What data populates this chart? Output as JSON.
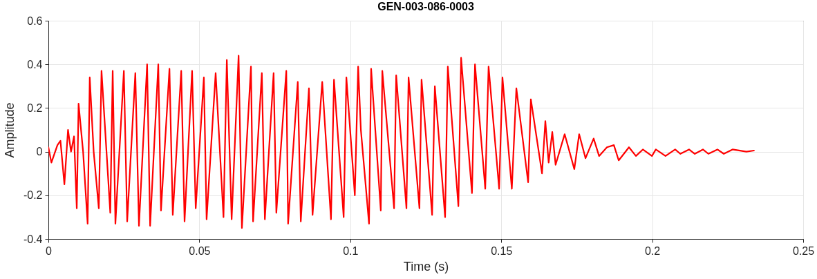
{
  "chart_data": {
    "type": "line",
    "title": "GEN-003-086-0003",
    "xlabel": "Time (s)",
    "ylabel": "Amplitude",
    "xlim": [
      0,
      0.25
    ],
    "xticks": [
      0,
      0.05,
      0.1,
      0.15,
      0.2,
      0.25
    ],
    "ylim": [
      -0.4,
      0.6
    ],
    "yticks": [
      -0.4,
      -0.2,
      0,
      0.2,
      0.4,
      0.6
    ],
    "grid": true,
    "series": [
      {
        "color": "#ff0000",
        "x": [
          0,
          0.001,
          0.003,
          0.004,
          0.0053,
          0.0065,
          0.0075,
          0.0085,
          0.0094,
          0.01,
          0.0115,
          0.013,
          0.0137,
          0.015,
          0.0167,
          0.0176,
          0.0205,
          0.0213,
          0.0222,
          0.025,
          0.0261,
          0.0288,
          0.03,
          0.0327,
          0.0337,
          0.0364,
          0.0373,
          0.0401,
          0.0412,
          0.044,
          0.0451,
          0.0476,
          0.0488,
          0.0515,
          0.0524,
          0.0554,
          0.058,
          0.0591,
          0.0607,
          0.063,
          0.0641,
          0.0671,
          0.0678,
          0.0707,
          0.0717,
          0.0746,
          0.0755,
          0.0788,
          0.0794,
          0.0826,
          0.0836,
          0.0863,
          0.0875,
          0.0907,
          0.0936,
          0.0946,
          0.0978,
          0.0987,
          0.1015,
          0.1026,
          0.1035,
          0.1062,
          0.1069,
          0.1101,
          0.1106,
          0.1145,
          0.1152,
          0.1186,
          0.1193,
          0.1229,
          0.1236,
          0.1271,
          0.128,
          0.1314,
          0.1323,
          0.1358,
          0.1367,
          0.1403,
          0.1413,
          0.1447,
          0.1458,
          0.1493,
          0.1504,
          0.1535,
          0.155,
          0.1589,
          0.1598,
          0.1635,
          0.1646,
          0.1657,
          0.1669,
          0.168,
          0.171,
          0.1742,
          0.1758,
          0.1779,
          0.1806,
          0.1824,
          0.185,
          0.1873,
          0.1889,
          0.1923,
          0.1946,
          0.1969,
          0.1999,
          0.2012,
          0.2044,
          0.2076,
          0.2093,
          0.2122,
          0.2141,
          0.2168,
          0.2186,
          0.2216,
          0.2237,
          0.2266,
          0.2312,
          0.2337
        ],
        "values": [
          0.02,
          -0.05,
          0.03,
          0.05,
          -0.15,
          0.1,
          0,
          0.07,
          -0.26,
          0.22,
          0,
          -0.33,
          0.34,
          0,
          -0.26,
          0.37,
          -0.28,
          0.37,
          -0.33,
          0.37,
          -0.32,
          0.36,
          -0.34,
          0.4,
          -0.34,
          0.4,
          -0.27,
          0.38,
          -0.29,
          0.37,
          -0.32,
          0.37,
          -0.26,
          0.34,
          -0.31,
          0.36,
          -0.3,
          0.42,
          -0.31,
          0.44,
          -0.35,
          0.39,
          -0.32,
          0.36,
          -0.31,
          0.36,
          -0.28,
          0.37,
          -0.33,
          0.32,
          -0.32,
          0.29,
          -0.29,
          0.32,
          -0.31,
          0.33,
          -0.3,
          0.34,
          -0.2,
          0.39,
          0.1,
          -0.33,
          0.38,
          -0.27,
          0.37,
          -0.26,
          0.35,
          -0.26,
          0.34,
          -0.26,
          0.33,
          -0.29,
          0.3,
          -0.3,
          0.39,
          -0.25,
          0.43,
          -0.19,
          0.4,
          -0.17,
          0.39,
          -0.17,
          0.34,
          -0.17,
          0.29,
          -0.14,
          0.24,
          -0.1,
          0.14,
          -0.05,
          0.09,
          -0.06,
          0.08,
          -0.08,
          0.08,
          -0.03,
          0.06,
          -0.02,
          0.02,
          0.03,
          -0.04,
          0.02,
          -0.02,
          0.01,
          -0.02,
          0.01,
          -0.02,
          0.01,
          -0.01,
          0.01,
          -0.01,
          0.01,
          -0.01,
          0.01,
          -0.01,
          0.01,
          0,
          0.005
        ]
      }
    ]
  }
}
